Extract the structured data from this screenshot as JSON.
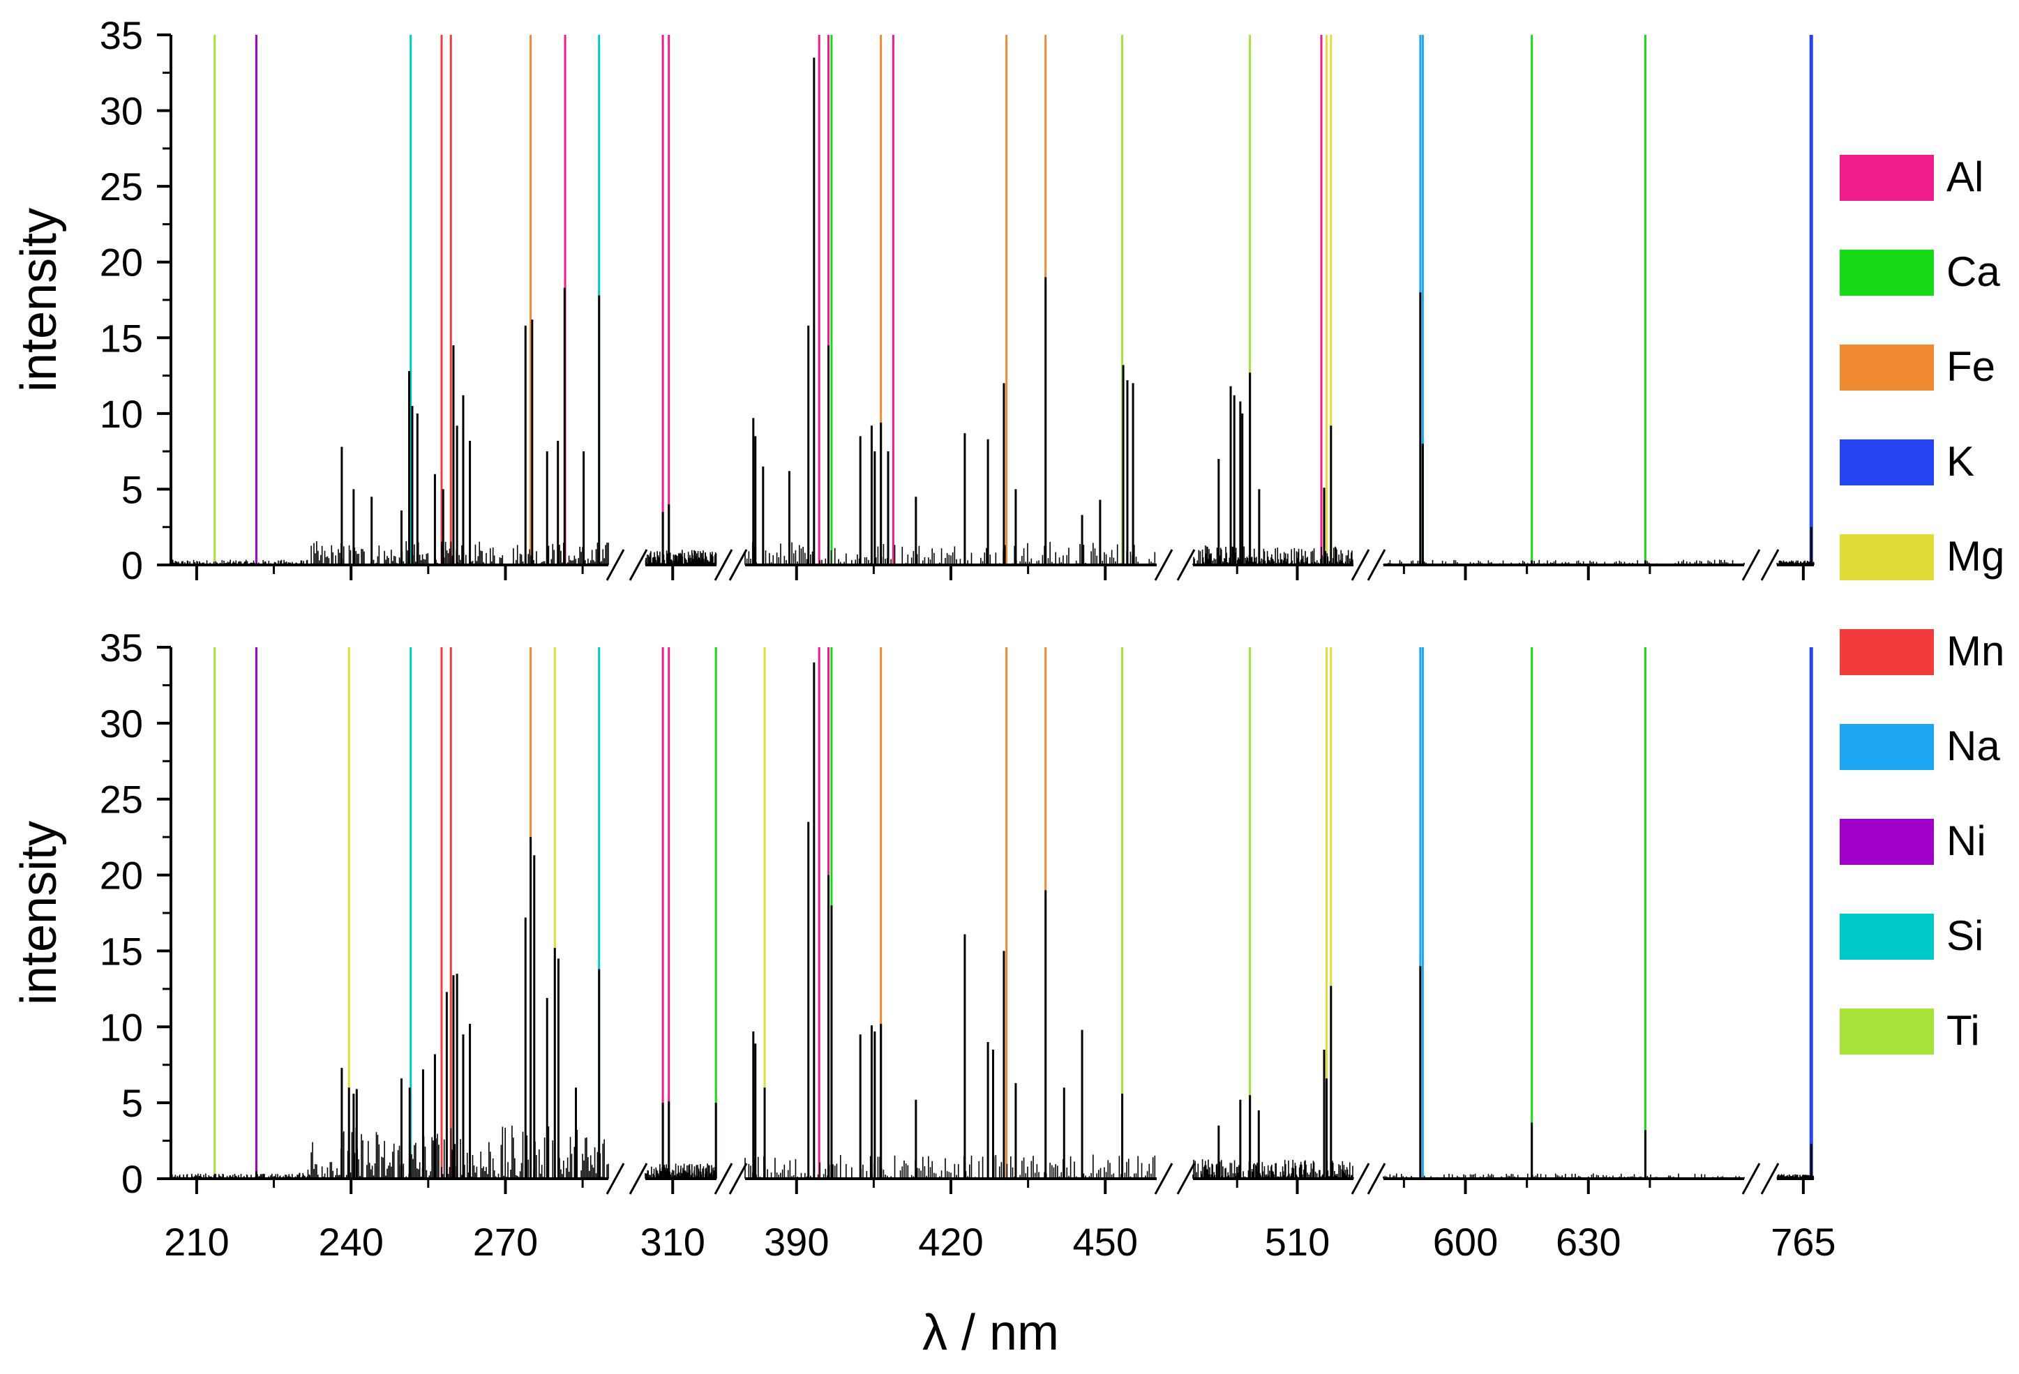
{
  "chart_data": {
    "type": "line",
    "xlabel": "λ / nm",
    "ylabel": "intensity",
    "ylim": [
      0,
      35
    ],
    "yticks": [
      0,
      5,
      10,
      15,
      20,
      25,
      30,
      35
    ],
    "segments": [
      {
        "range": [
          205,
          290
        ],
        "ticks": [
          210,
          240,
          270
        ],
        "minor": [
          225,
          255,
          285
        ]
      },
      {
        "range": [
          305,
          318
        ],
        "ticks": [
          310
        ],
        "minor": []
      },
      {
        "range": [
          380,
          460
        ],
        "ticks": [
          390,
          420,
          450
        ],
        "minor": [
          405,
          435
        ]
      },
      {
        "range": [
          484,
          524
        ],
        "ticks": [
          510
        ],
        "minor": [
          495
        ]
      },
      {
        "range": [
          580,
          668
        ],
        "ticks": [
          600,
          630
        ],
        "minor": [
          585,
          615,
          645
        ]
      },
      {
        "range": [
          760,
          767
        ],
        "ticks": [
          765
        ],
        "minor": []
      }
    ],
    "legend": [
      {
        "label": "Al",
        "color": "#ee1c8c"
      },
      {
        "label": "Ca",
        "color": "#17d917"
      },
      {
        "label": "Fe",
        "color": "#f08a32"
      },
      {
        "label": "K",
        "color": "#2445f0"
      },
      {
        "label": "Mg",
        "color": "#e2dc3a"
      },
      {
        "label": "Mn",
        "color": "#f23b3b"
      },
      {
        "label": "Na",
        "color": "#1ea6f2"
      },
      {
        "label": "Ni",
        "color": "#a000c8"
      },
      {
        "label": "Si",
        "color": "#00c8c8"
      },
      {
        "label": "Ti",
        "color": "#a6e23a"
      }
    ],
    "element_lines": [
      {
        "element": "Ti",
        "wl": 213.5,
        "panels": [
          1,
          2
        ]
      },
      {
        "element": "Ni",
        "wl": 221.6,
        "panels": [
          1,
          2
        ]
      },
      {
        "element": "Mg",
        "wl": 239.6,
        "panels": [
          2
        ]
      },
      {
        "element": "Si",
        "wl": 251.6,
        "panels": [
          1,
          2
        ]
      },
      {
        "element": "Mn",
        "wl": 257.6,
        "panels": [
          1,
          2
        ]
      },
      {
        "element": "Mn",
        "wl": 259.4,
        "panels": [
          1,
          2
        ]
      },
      {
        "element": "Fe",
        "wl": 274.9,
        "panels": [
          1,
          2
        ]
      },
      {
        "element": "Mg",
        "wl": 279.6,
        "panels": [
          2
        ]
      },
      {
        "element": "Al",
        "wl": 281.6,
        "panels": [
          1
        ]
      },
      {
        "element": "Si",
        "wl": 288.2,
        "panels": [
          1,
          2
        ]
      },
      {
        "element": "Al",
        "wl": 308.2,
        "panels": [
          1,
          2
        ]
      },
      {
        "element": "Al",
        "wl": 309.3,
        "panels": [
          1,
          2
        ]
      },
      {
        "element": "Ca",
        "wl": 317.9,
        "panels": [
          2
        ]
      },
      {
        "element": "Mg",
        "wl": 383.8,
        "panels": [
          2
        ]
      },
      {
        "element": "Al",
        "wl": 394.4,
        "panels": [
          1,
          2
        ]
      },
      {
        "element": "Al",
        "wl": 396.2,
        "panels": [
          1,
          2
        ]
      },
      {
        "element": "Ca",
        "wl": 396.8,
        "panels": [
          1,
          2
        ]
      },
      {
        "element": "Fe",
        "wl": 406.4,
        "panels": [
          1,
          2
        ]
      },
      {
        "element": "Al",
        "wl": 408.8,
        "panels": [
          1
        ]
      },
      {
        "element": "Fe",
        "wl": 430.8,
        "panels": [
          1,
          2
        ]
      },
      {
        "element": "Fe",
        "wl": 438.4,
        "panels": [
          1,
          2
        ]
      },
      {
        "element": "Ti",
        "wl": 453.3,
        "panels": [
          1,
          2
        ]
      },
      {
        "element": "Ti",
        "wl": 498.2,
        "panels": [
          1,
          2
        ]
      },
      {
        "element": "Al",
        "wl": 516.0,
        "panels": [
          1
        ]
      },
      {
        "element": "Mg",
        "wl": 517.3,
        "panels": [
          1,
          2
        ]
      },
      {
        "element": "Mg",
        "wl": 518.4,
        "panels": [
          1,
          2
        ]
      },
      {
        "element": "Na",
        "wl": 589.0,
        "panels": [
          1,
          2
        ]
      },
      {
        "element": "Na",
        "wl": 589.6,
        "panels": [
          1,
          2
        ]
      },
      {
        "element": "Ca",
        "wl": 616.2,
        "panels": [
          1,
          2
        ]
      },
      {
        "element": "Ca",
        "wl": 643.9,
        "panels": [
          1,
          2
        ]
      },
      {
        "element": "K",
        "wl": 766.5,
        "panels": [
          1,
          2
        ]
      }
    ],
    "panels": [
      {
        "name": "top",
        "peaks": [
          [
            238.2,
            7.8
          ],
          [
            240.5,
            5
          ],
          [
            244,
            4.5
          ],
          [
            249.8,
            3.6
          ],
          [
            251.3,
            12.8
          ],
          [
            251.9,
            10.5
          ],
          [
            252.9,
            10
          ],
          [
            256.3,
            6
          ],
          [
            257.9,
            5
          ],
          [
            259.9,
            14.5
          ],
          [
            260.6,
            9.2
          ],
          [
            261.8,
            11.2
          ],
          [
            263.1,
            8.2
          ],
          [
            273.9,
            15.8
          ],
          [
            275.2,
            16.2
          ],
          [
            278.1,
            7.5
          ],
          [
            280.2,
            8.2
          ],
          [
            281.5,
            18.3
          ],
          [
            285.2,
            7.5
          ],
          [
            288.2,
            17.8
          ],
          [
            308.2,
            3.5
          ],
          [
            309.3,
            4
          ],
          [
            381.6,
            9.7
          ],
          [
            382,
            8.5
          ],
          [
            383.5,
            6.5
          ],
          [
            388.6,
            6.2
          ],
          [
            392.3,
            15.8
          ],
          [
            393.4,
            33.5
          ],
          [
            396.2,
            14.5
          ],
          [
            402.4,
            8.5
          ],
          [
            404.6,
            9.2
          ],
          [
            405.2,
            7.5
          ],
          [
            406.4,
            9.4
          ],
          [
            407.8,
            7.5
          ],
          [
            413.2,
            4.5
          ],
          [
            422.7,
            8.7
          ],
          [
            427.2,
            8.3
          ],
          [
            430.3,
            12
          ],
          [
            432.6,
            5
          ],
          [
            438.4,
            19
          ],
          [
            445.5,
            3.3
          ],
          [
            449,
            4.3
          ],
          [
            453.5,
            13.2
          ],
          [
            454.3,
            12.2
          ],
          [
            455.4,
            12
          ],
          [
            490.4,
            7
          ],
          [
            493.4,
            11.8
          ],
          [
            494.3,
            11.2
          ],
          [
            495.8,
            10.8
          ],
          [
            496.3,
            10
          ],
          [
            498.2,
            12.7
          ],
          [
            500.5,
            5
          ],
          [
            516.7,
            5.1
          ],
          [
            518.4,
            9.2
          ],
          [
            589,
            18
          ],
          [
            589.6,
            8
          ],
          [
            616.2,
            0.3
          ],
          [
            643.9,
            0.3
          ],
          [
            766.5,
            2.5
          ]
        ]
      },
      {
        "name": "bottom",
        "peaks": [
          [
            221.6,
            0.5
          ],
          [
            238.2,
            7.3
          ],
          [
            239.6,
            6
          ],
          [
            240.5,
            5.6
          ],
          [
            241.1,
            5.9
          ],
          [
            249.8,
            6.6
          ],
          [
            251.4,
            6
          ],
          [
            254,
            7.2
          ],
          [
            256.3,
            8.2
          ],
          [
            258.6,
            12.3
          ],
          [
            259.9,
            13.4
          ],
          [
            260.6,
            13.5
          ],
          [
            261.8,
            9.5
          ],
          [
            263.1,
            10.2
          ],
          [
            273.9,
            17.2
          ],
          [
            274.9,
            22.5
          ],
          [
            275.6,
            21.3
          ],
          [
            278.1,
            11.9
          ],
          [
            279.6,
            15.2
          ],
          [
            280.3,
            14.5
          ],
          [
            283.7,
            6
          ],
          [
            288.2,
            13.8
          ],
          [
            308.2,
            5
          ],
          [
            309.3,
            5.1
          ],
          [
            317.9,
            5
          ],
          [
            381.6,
            9.7
          ],
          [
            382,
            8.9
          ],
          [
            383.8,
            6
          ],
          [
            392.3,
            23.5
          ],
          [
            393.4,
            34
          ],
          [
            396.2,
            20
          ],
          [
            396.8,
            18
          ],
          [
            402.4,
            9.5
          ],
          [
            404.6,
            10.1
          ],
          [
            405.2,
            9.7
          ],
          [
            406.4,
            10.2
          ],
          [
            413.2,
            5.2
          ],
          [
            422.7,
            16.1
          ],
          [
            427.2,
            9
          ],
          [
            428.2,
            8.5
          ],
          [
            430.3,
            15
          ],
          [
            432.6,
            6.3
          ],
          [
            438.4,
            19
          ],
          [
            442,
            6
          ],
          [
            445.5,
            9.8
          ],
          [
            453.3,
            5.6
          ],
          [
            490.4,
            3.5
          ],
          [
            495.8,
            5.2
          ],
          [
            498.2,
            5.5
          ],
          [
            500.4,
            4.5
          ],
          [
            516.7,
            8.5
          ],
          [
            517.3,
            6.6
          ],
          [
            518.4,
            12.7
          ],
          [
            589,
            14
          ],
          [
            616.2,
            3.7
          ],
          [
            643.9,
            3.2
          ],
          [
            766.5,
            2.3
          ]
        ]
      }
    ]
  }
}
